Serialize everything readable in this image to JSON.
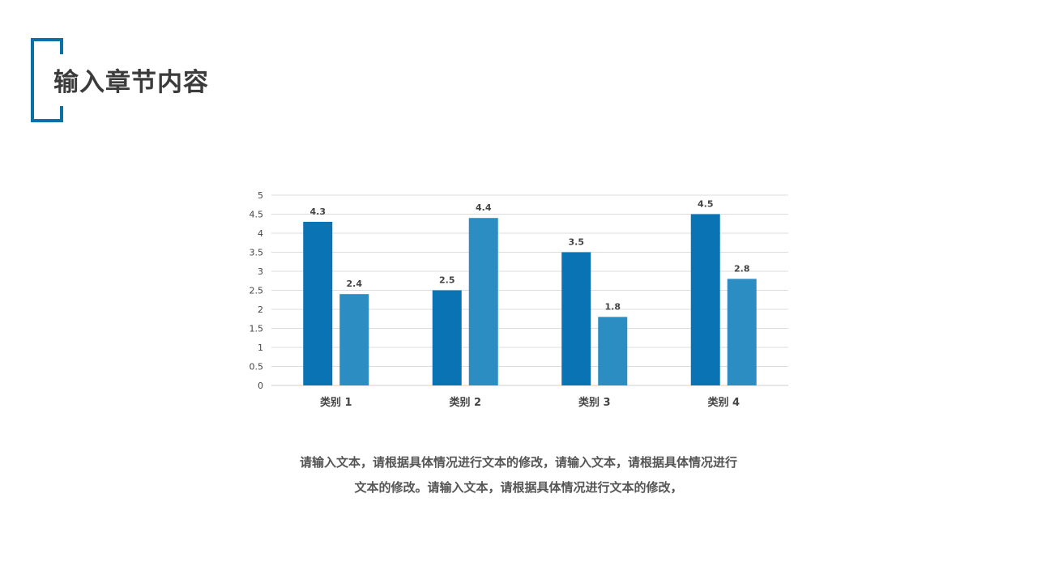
{
  "header": {
    "title": "输入章节内容",
    "accent_color": "#0b6fa8"
  },
  "chart_data": {
    "type": "bar",
    "categories": [
      "类别 1",
      "类别 2",
      "类别 3",
      "类别 4"
    ],
    "series": [
      {
        "values": [
          4.3,
          2.5,
          3.5,
          4.5
        ],
        "color": "#0a73b4"
      },
      {
        "values": [
          2.4,
          4.4,
          1.8,
          2.8
        ],
        "color": "#2b8dc2"
      }
    ],
    "ylim": [
      0,
      5
    ],
    "yticks": [
      "0",
      "0.5",
      "1",
      "1.5",
      "2",
      "2.5",
      "3",
      "3.5",
      "4",
      "4.5",
      "5"
    ],
    "grid": true,
    "data_labels": true
  },
  "body": {
    "lines": [
      "请输入文本，请根据具体情况进行文本的修改，请输入文本，请根据具体情况进行",
      "文本的修改。请输入文本，请根据具体情况进行文本的修改，"
    ]
  }
}
